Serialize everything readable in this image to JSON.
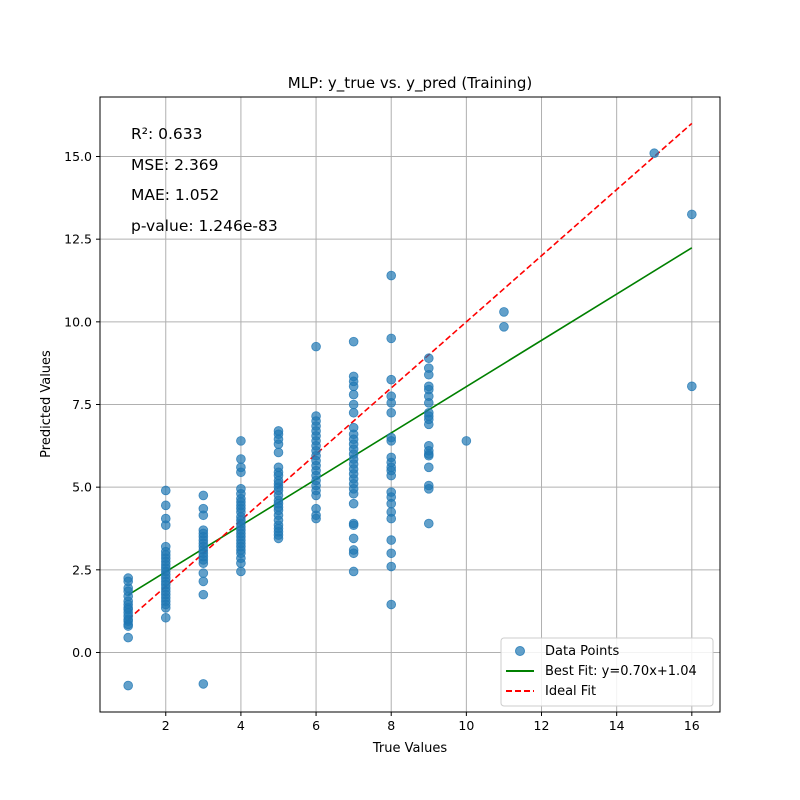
{
  "chart_data": {
    "type": "scatter",
    "title": "MLP: y_true vs. y_pred (Training)",
    "xlabel": "True Values",
    "ylabel": "Predicted Values",
    "xlim": [
      0.25,
      16.75
    ],
    "ylim": [
      -1.8,
      16.8
    ],
    "xticks": [
      2,
      4,
      6,
      8,
      10,
      12,
      14,
      16
    ],
    "yticks": [
      0.0,
      2.5,
      5.0,
      7.5,
      10.0,
      12.5,
      15.0
    ],
    "ytick_labels": [
      "0.0",
      "2.5",
      "5.0",
      "7.5",
      "10.0",
      "12.5",
      "15.0"
    ],
    "grid": true,
    "legend_position": "lower-right",
    "annotations": [
      "R²: 0.633",
      "MSE: 2.369",
      "MAE: 1.052",
      "p-value: 1.246e-83"
    ],
    "series": [
      {
        "name": "Data Points",
        "kind": "scatter",
        "color": "#1f77b4",
        "points": [
          [
            1,
            2.25
          ],
          [
            1,
            2.15
          ],
          [
            1,
            1.95
          ],
          [
            1,
            1.85
          ],
          [
            1,
            1.7
          ],
          [
            1,
            1.55
          ],
          [
            1,
            1.45
          ],
          [
            1,
            1.35
          ],
          [
            1,
            1.3
          ],
          [
            1,
            1.2
          ],
          [
            1,
            1.1
          ],
          [
            1,
            1.0
          ],
          [
            1,
            0.95
          ],
          [
            1,
            0.85
          ],
          [
            1,
            0.8
          ],
          [
            1,
            0.45
          ],
          [
            1,
            -1.0
          ],
          [
            2,
            4.9
          ],
          [
            2,
            4.45
          ],
          [
            2,
            4.05
          ],
          [
            2,
            3.85
          ],
          [
            2,
            3.2
          ],
          [
            2,
            3.05
          ],
          [
            2,
            2.95
          ],
          [
            2,
            2.85
          ],
          [
            2,
            2.75
          ],
          [
            2,
            2.65
          ],
          [
            2,
            2.55
          ],
          [
            2,
            2.45
          ],
          [
            2,
            2.35
          ],
          [
            2,
            2.25
          ],
          [
            2,
            2.15
          ],
          [
            2,
            2.05
          ],
          [
            2,
            1.95
          ],
          [
            2,
            1.85
          ],
          [
            2,
            1.75
          ],
          [
            2,
            1.65
          ],
          [
            2,
            1.55
          ],
          [
            2,
            1.45
          ],
          [
            2,
            1.35
          ],
          [
            2,
            1.05
          ],
          [
            3,
            4.75
          ],
          [
            3,
            4.35
          ],
          [
            3,
            4.15
          ],
          [
            3,
            3.7
          ],
          [
            3,
            3.6
          ],
          [
            3,
            3.5
          ],
          [
            3,
            3.4
          ],
          [
            3,
            3.3
          ],
          [
            3,
            3.2
          ],
          [
            3,
            3.1
          ],
          [
            3,
            3.0
          ],
          [
            3,
            2.9
          ],
          [
            3,
            2.8
          ],
          [
            3,
            2.7
          ],
          [
            3,
            2.4
          ],
          [
            3,
            2.15
          ],
          [
            3,
            1.75
          ],
          [
            3,
            -0.95
          ],
          [
            4,
            6.4
          ],
          [
            4,
            5.85
          ],
          [
            4,
            5.6
          ],
          [
            4,
            5.45
          ],
          [
            4,
            4.95
          ],
          [
            4,
            4.8
          ],
          [
            4,
            4.65
          ],
          [
            4,
            4.55
          ],
          [
            4,
            4.45
          ],
          [
            4,
            4.35
          ],
          [
            4,
            4.25
          ],
          [
            4,
            4.1
          ],
          [
            4,
            4.0
          ],
          [
            4,
            3.9
          ],
          [
            4,
            3.8
          ],
          [
            4,
            3.7
          ],
          [
            4,
            3.6
          ],
          [
            4,
            3.5
          ],
          [
            4,
            3.4
          ],
          [
            4,
            3.3
          ],
          [
            4,
            3.2
          ],
          [
            4,
            3.1
          ],
          [
            4,
            3.0
          ],
          [
            4,
            2.85
          ],
          [
            4,
            2.7
          ],
          [
            4,
            2.45
          ],
          [
            5,
            6.7
          ],
          [
            5,
            6.6
          ],
          [
            5,
            6.45
          ],
          [
            5,
            6.3
          ],
          [
            5,
            6.05
          ],
          [
            5,
            5.6
          ],
          [
            5,
            5.45
          ],
          [
            5,
            5.35
          ],
          [
            5,
            5.2
          ],
          [
            5,
            5.1
          ],
          [
            5,
            5.0
          ],
          [
            5,
            4.9
          ],
          [
            5,
            4.75
          ],
          [
            5,
            4.6
          ],
          [
            5,
            4.5
          ],
          [
            5,
            4.4
          ],
          [
            5,
            4.3
          ],
          [
            5,
            4.15
          ],
          [
            5,
            4.0
          ],
          [
            5,
            3.85
          ],
          [
            5,
            3.75
          ],
          [
            5,
            3.65
          ],
          [
            5,
            3.55
          ],
          [
            5,
            3.45
          ],
          [
            6,
            9.25
          ],
          [
            6,
            7.15
          ],
          [
            6,
            7.0
          ],
          [
            6,
            6.85
          ],
          [
            6,
            6.7
          ],
          [
            6,
            6.55
          ],
          [
            6,
            6.4
          ],
          [
            6,
            6.25
          ],
          [
            6,
            6.1
          ],
          [
            6,
            5.95
          ],
          [
            6,
            5.8
          ],
          [
            6,
            5.65
          ],
          [
            6,
            5.5
          ],
          [
            6,
            5.35
          ],
          [
            6,
            5.2
          ],
          [
            6,
            5.05
          ],
          [
            6,
            4.9
          ],
          [
            6,
            4.75
          ],
          [
            6,
            4.35
          ],
          [
            6,
            4.15
          ],
          [
            6,
            4.05
          ],
          [
            7,
            9.4
          ],
          [
            7,
            8.35
          ],
          [
            7,
            8.2
          ],
          [
            7,
            8.05
          ],
          [
            7,
            7.8
          ],
          [
            7,
            7.5
          ],
          [
            7,
            7.25
          ],
          [
            7,
            6.8
          ],
          [
            7,
            6.6
          ],
          [
            7,
            6.45
          ],
          [
            7,
            6.3
          ],
          [
            7,
            6.15
          ],
          [
            7,
            6.0
          ],
          [
            7,
            5.85
          ],
          [
            7,
            5.7
          ],
          [
            7,
            5.55
          ],
          [
            7,
            5.4
          ],
          [
            7,
            5.25
          ],
          [
            7,
            5.1
          ],
          [
            7,
            4.95
          ],
          [
            7,
            4.8
          ],
          [
            7,
            4.5
          ],
          [
            7,
            3.9
          ],
          [
            7,
            3.85
          ],
          [
            7,
            3.45
          ],
          [
            7,
            3.1
          ],
          [
            7,
            3.0
          ],
          [
            7,
            2.45
          ],
          [
            8,
            11.4
          ],
          [
            8,
            9.5
          ],
          [
            8,
            8.25
          ],
          [
            8,
            7.75
          ],
          [
            8,
            7.55
          ],
          [
            8,
            7.25
          ],
          [
            8,
            6.5
          ],
          [
            8,
            6.4
          ],
          [
            8,
            5.9
          ],
          [
            8,
            5.75
          ],
          [
            8,
            5.6
          ],
          [
            8,
            5.5
          ],
          [
            8,
            5.35
          ],
          [
            8,
            4.85
          ],
          [
            8,
            4.7
          ],
          [
            8,
            4.5
          ],
          [
            8,
            4.25
          ],
          [
            8,
            4.05
          ],
          [
            8,
            3.4
          ],
          [
            8,
            3.0
          ],
          [
            8,
            2.6
          ],
          [
            8,
            1.45
          ],
          [
            9,
            8.9
          ],
          [
            9,
            8.6
          ],
          [
            9,
            8.4
          ],
          [
            9,
            8.05
          ],
          [
            9,
            7.95
          ],
          [
            9,
            7.75
          ],
          [
            9,
            7.55
          ],
          [
            9,
            7.25
          ],
          [
            9,
            7.15
          ],
          [
            9,
            7.05
          ],
          [
            9,
            6.9
          ],
          [
            9,
            6.25
          ],
          [
            9,
            6.1
          ],
          [
            9,
            6.0
          ],
          [
            9,
            5.95
          ],
          [
            9,
            5.6
          ],
          [
            9,
            5.05
          ],
          [
            9,
            4.95
          ],
          [
            9,
            3.9
          ],
          [
            10,
            6.4
          ],
          [
            11,
            10.3
          ],
          [
            11,
            9.85
          ],
          [
            15,
            15.1
          ],
          [
            16,
            13.25
          ],
          [
            16,
            8.05
          ]
        ]
      },
      {
        "name": "Best Fit: y=0.70x+1.04",
        "kind": "line",
        "color": "#008000",
        "dash": "solid",
        "x": [
          1,
          16
        ],
        "y": [
          1.74,
          12.24
        ]
      },
      {
        "name": "Ideal Fit",
        "kind": "line",
        "color": "#ff0000",
        "dash": "dashed",
        "x": [
          1,
          16
        ],
        "y": [
          1,
          16
        ]
      }
    ]
  }
}
